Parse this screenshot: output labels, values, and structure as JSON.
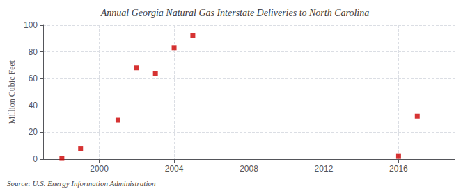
{
  "chart_data": {
    "type": "scatter",
    "title": "Annual Georgia Natural Gas Interstate Deliveries to North Carolina",
    "ylabel": "Million Cubic Feet",
    "annotation": "Source: U.S. Energy Information Administration",
    "x": [
      1998,
      1999,
      2001,
      2002,
      2003,
      2004,
      2005,
      2016,
      2017
    ],
    "values": [
      0.5,
      8,
      29,
      68,
      64,
      83,
      92,
      2,
      32
    ],
    "color": "#cc0000",
    "marker": "square",
    "xlim": [
      1997,
      2019
    ],
    "ylim": [
      0,
      100
    ],
    "xticks": [
      2000,
      2004,
      2008,
      2012,
      2016
    ],
    "yticks": [
      0,
      20,
      40,
      60,
      80,
      100
    ],
    "grid": true
  }
}
